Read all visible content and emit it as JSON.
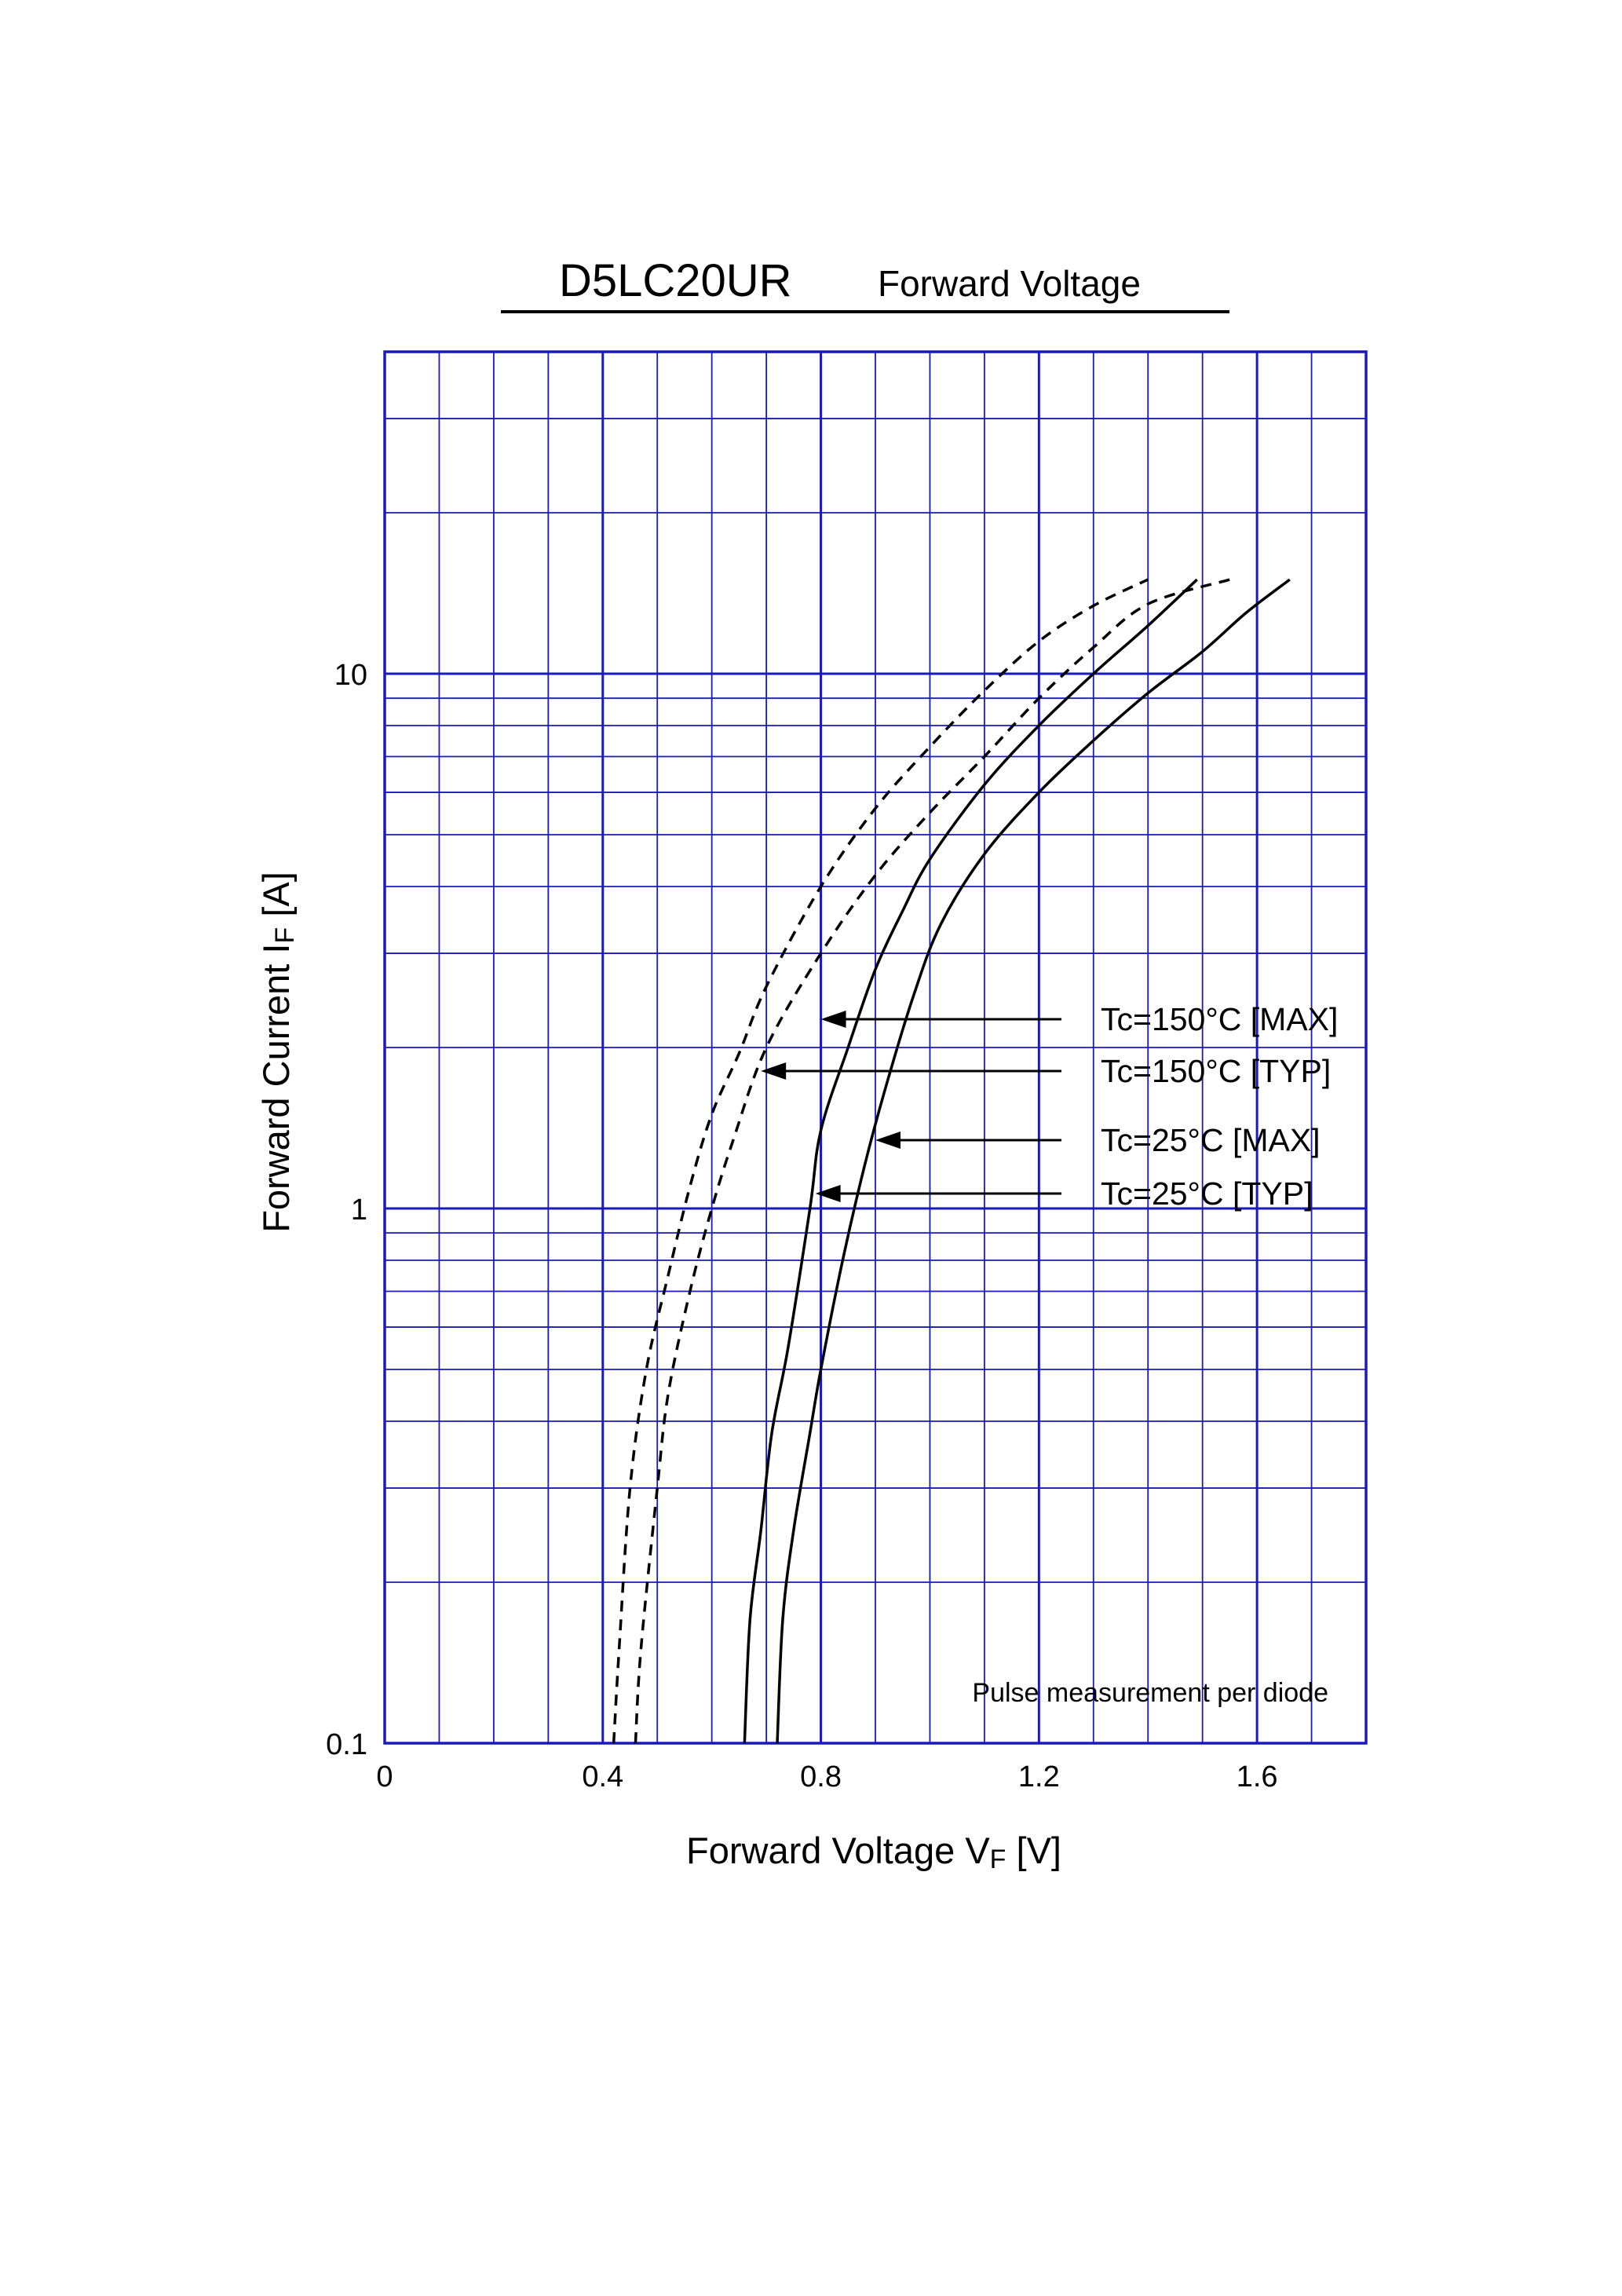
{
  "title": {
    "part_number": "D5LC20UR",
    "subtitle": "Forward Voltage"
  },
  "chart_data": {
    "type": "line",
    "xlabel": {
      "main": "Forward Voltage  V",
      "sub": "F",
      "unit": "  [V]"
    },
    "ylabel": {
      "main": "Forward Current  I",
      "sub": "F",
      "unit": "  [A]"
    },
    "xlim": [
      0,
      1.8
    ],
    "ylim": [
      0.1,
      40
    ],
    "yscale": "log",
    "grid": true,
    "grid_color": "#1a1ab8",
    "x_ticks": [
      0,
      0.4,
      0.8,
      1.2,
      1.6
    ],
    "x_tick_labels": [
      "0",
      "0.4",
      "0.8",
      "1.2",
      "1.6"
    ],
    "y_ticks": [
      0.1,
      1,
      10
    ],
    "y_tick_labels": [
      "0.1",
      "1",
      "10"
    ],
    "annotation": "Pulse measurement per diode",
    "series": [
      {
        "name": "Tc=150°C [MAX]",
        "style": "dashed",
        "arrow_at": [
          0.8,
          2.5
        ],
        "points": [
          [
            0.46,
            0.1
          ],
          [
            0.47,
            0.15
          ],
          [
            0.5,
            0.3
          ],
          [
            0.52,
            0.45
          ],
          [
            0.56,
            0.7
          ],
          [
            0.6,
            1.0
          ],
          [
            0.64,
            1.35
          ],
          [
            0.7,
            2.0
          ],
          [
            0.8,
            3.0
          ],
          [
            0.9,
            4.2
          ],
          [
            1.0,
            5.5
          ],
          [
            1.1,
            7.0
          ],
          [
            1.2,
            9.0
          ],
          [
            1.3,
            11.2
          ],
          [
            1.4,
            13.5
          ],
          [
            1.55,
            15.0
          ]
        ]
      },
      {
        "name": "Tc=150°C [TYP]",
        "style": "dashed",
        "arrow_at": [
          0.69,
          2.0
        ],
        "points": [
          [
            0.42,
            0.1
          ],
          [
            0.43,
            0.15
          ],
          [
            0.45,
            0.3
          ],
          [
            0.48,
            0.5
          ],
          [
            0.52,
            0.75
          ],
          [
            0.56,
            1.1
          ],
          [
            0.6,
            1.5
          ],
          [
            0.65,
            1.95
          ],
          [
            0.7,
            2.6
          ],
          [
            0.8,
            4.0
          ],
          [
            0.9,
            5.6
          ],
          [
            1.0,
            7.3
          ],
          [
            1.1,
            9.3
          ],
          [
            1.2,
            11.5
          ],
          [
            1.3,
            13.4
          ],
          [
            1.4,
            15.0
          ]
        ]
      },
      {
        "name": "Tc=25°C [MAX]",
        "style": "solid",
        "arrow_at": [
          0.9,
          1.45
        ],
        "points": [
          [
            0.72,
            0.1
          ],
          [
            0.73,
            0.17
          ],
          [
            0.75,
            0.25
          ],
          [
            0.78,
            0.38
          ],
          [
            0.8,
            0.5
          ],
          [
            0.84,
            0.8
          ],
          [
            0.88,
            1.2
          ],
          [
            0.92,
            1.7
          ],
          [
            0.97,
            2.5
          ],
          [
            1.02,
            3.4
          ],
          [
            1.1,
            4.6
          ],
          [
            1.2,
            6.0
          ],
          [
            1.3,
            7.5
          ],
          [
            1.4,
            9.2
          ],
          [
            1.5,
            11.0
          ],
          [
            1.58,
            13.0
          ],
          [
            1.66,
            15.0
          ]
        ]
      },
      {
        "name": "Tc=25°C [TYP]",
        "style": "solid",
        "arrow_at": [
          0.79,
          1.15
        ],
        "points": [
          [
            0.66,
            0.1
          ],
          [
            0.67,
            0.17
          ],
          [
            0.69,
            0.25
          ],
          [
            0.71,
            0.38
          ],
          [
            0.74,
            0.55
          ],
          [
            0.78,
            1.0
          ],
          [
            0.8,
            1.4
          ],
          [
            0.85,
            2.0
          ],
          [
            0.9,
            2.8
          ],
          [
            0.95,
            3.6
          ],
          [
            1.0,
            4.5
          ],
          [
            1.1,
            6.2
          ],
          [
            1.2,
            8.0
          ],
          [
            1.3,
            10.0
          ],
          [
            1.4,
            12.3
          ],
          [
            1.49,
            15.0
          ]
        ]
      }
    ]
  }
}
